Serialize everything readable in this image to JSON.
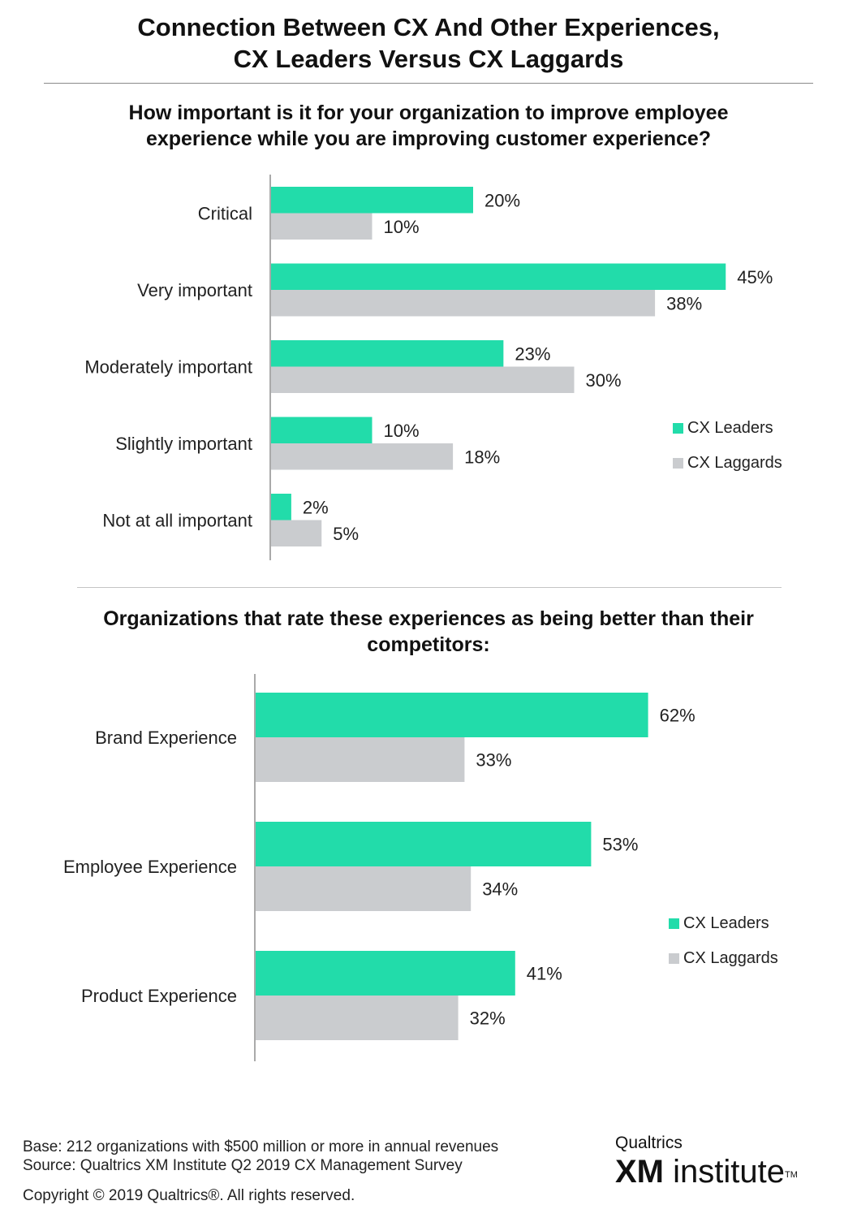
{
  "title_line1": "Connection Between CX And Other Experiences,",
  "title_line2": "CX Leaders Versus CX Laggards",
  "colors": {
    "leaders": "#22dcaa",
    "laggards": "#cacccf",
    "axis": "#aaaaaa"
  },
  "chart_data": [
    {
      "type": "bar",
      "orientation": "horizontal",
      "title_line1": "How important is it for your organization to improve employee",
      "title_line2": "experience while you are improving customer experience?",
      "categories": [
        "Critical",
        "Very important",
        "Moderately important",
        "Slightly important",
        "Not at all important"
      ],
      "series": [
        {
          "name": "CX Leaders",
          "values": [
            20,
            45,
            23,
            10,
            2
          ]
        },
        {
          "name": "CX Laggards",
          "values": [
            10,
            38,
            30,
            18,
            5
          ]
        }
      ],
      "value_labels": [
        [
          "20%",
          "45%",
          "23%",
          "10%",
          "2%"
        ],
        [
          "10%",
          "38%",
          "30%",
          "18%",
          "5%"
        ]
      ],
      "legend_position": "right",
      "unit": "%"
    },
    {
      "type": "bar",
      "orientation": "horizontal",
      "title_line1": "Organizations that rate these experiences as being better than their",
      "title_line2": "competitors:",
      "categories": [
        "Brand Experience",
        "Employee Experience",
        "Product Experience"
      ],
      "series": [
        {
          "name": "CX Leaders",
          "values": [
            62,
            53,
            41
          ]
        },
        {
          "name": "CX Laggards",
          "values": [
            33,
            34,
            32
          ]
        }
      ],
      "value_labels": [
        [
          "62%",
          "53%",
          "41%"
        ],
        [
          "33%",
          "34%",
          "32%"
        ]
      ],
      "legend_position": "right",
      "unit": "%"
    }
  ],
  "footer": {
    "base": "Base: 212 organizations with $500 million or more in annual revenues",
    "source": "Source: Qualtrics XM Institute Q2 2019 CX Management Survey",
    "copyright": "Copyright © 2019 Qualtrics®.  All rights reserved."
  },
  "logo": {
    "top": "Qualtrics",
    "xm": "XM",
    "institute": "institute",
    "tm": "TM"
  }
}
